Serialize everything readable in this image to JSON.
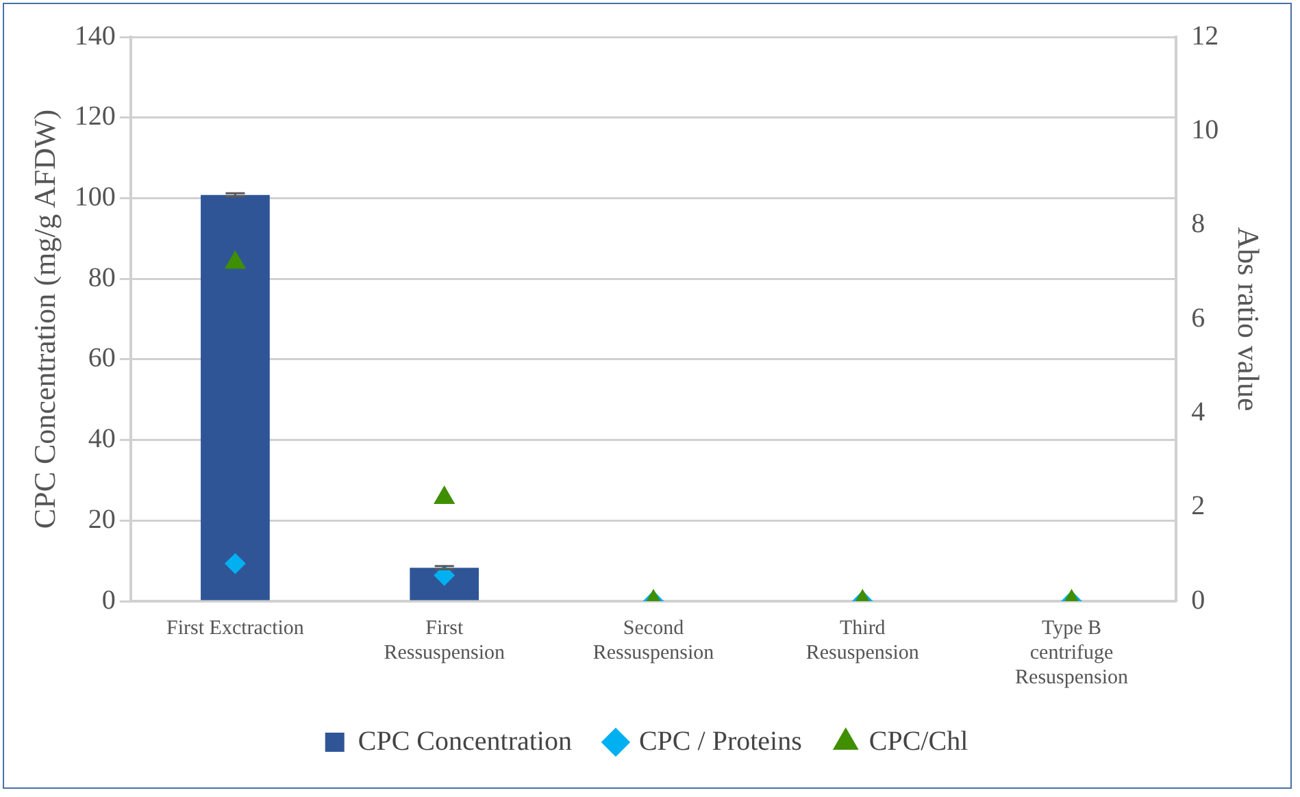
{
  "chart_data": {
    "type": "bar",
    "categories": [
      "First Exctraction",
      "First\nRessuspension",
      "Second\nRessuspension",
      "Third\nResuspension",
      "Type B\ncentrifuge\nResuspension"
    ],
    "ylabel": "CPC Concentration (mg/g AFDW)",
    "y2label": "Abs ratio value",
    "ylim": [
      0,
      140
    ],
    "yticks": [
      0,
      20,
      40,
      60,
      80,
      100,
      120,
      140
    ],
    "y2lim": [
      0,
      12
    ],
    "y2ticks": [
      0,
      2,
      4,
      6,
      8,
      10,
      12
    ],
    "grid": "y",
    "legend": "bottom",
    "series": [
      {
        "name": "CPC Concentration",
        "color": "#2f5597",
        "values": [
          100.8,
          8.3,
          0,
          0,
          0
        ],
        "errors": [
          0.4,
          0.4,
          null,
          null,
          null
        ]
      },
      {
        "name": "CPC / Proteins",
        "type": "scatter",
        "axis": "y2",
        "marker": "diamond",
        "color": "#00b0f0",
        "values": [
          0.8,
          0.55,
          0,
          0,
          0
        ]
      },
      {
        "name": "CPC/Chl",
        "type": "scatter",
        "axis": "y2",
        "marker": "triangle",
        "color": "#3f8f00",
        "values": [
          7.2,
          2.2,
          0,
          0,
          0
        ]
      }
    ]
  }
}
